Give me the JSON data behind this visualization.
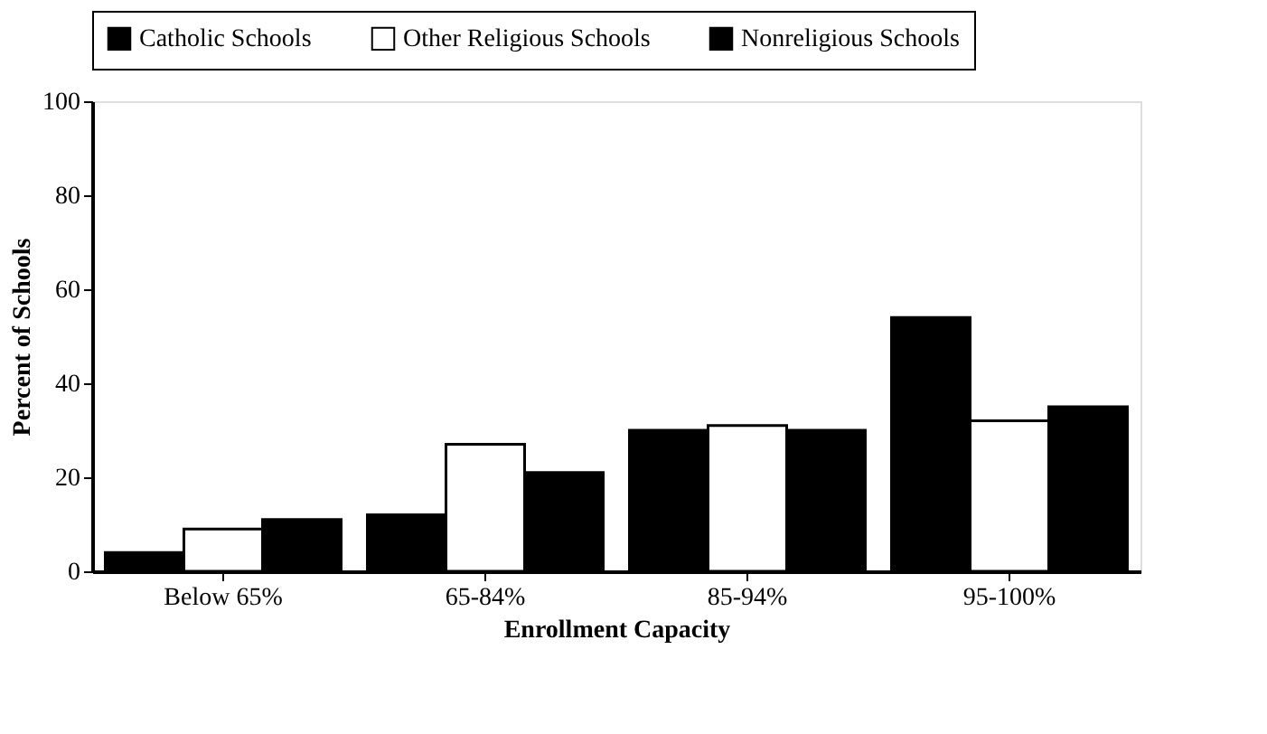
{
  "chart_data": {
    "type": "bar",
    "xlabel": "Enrollment Capacity",
    "ylabel": "Percent of Schools",
    "categories": [
      "Below 65%",
      "65-84%",
      "85-94%",
      "95-100%"
    ],
    "series": [
      {
        "name": "Catholic Schools",
        "color": "#000000",
        "values": [
          4,
          12,
          30,
          54
        ]
      },
      {
        "name": "Other Religious Schools",
        "color": "#ffffff",
        "values": [
          9,
          27,
          31,
          32
        ]
      },
      {
        "name": "Nonreligious Schools",
        "color": "#000000",
        "values": [
          11,
          21,
          30,
          35
        ]
      }
    ],
    "ylim": [
      0,
      100
    ],
    "yticks": [
      0,
      20,
      40,
      60,
      80,
      100
    ],
    "grid": false,
    "legend": "top"
  }
}
